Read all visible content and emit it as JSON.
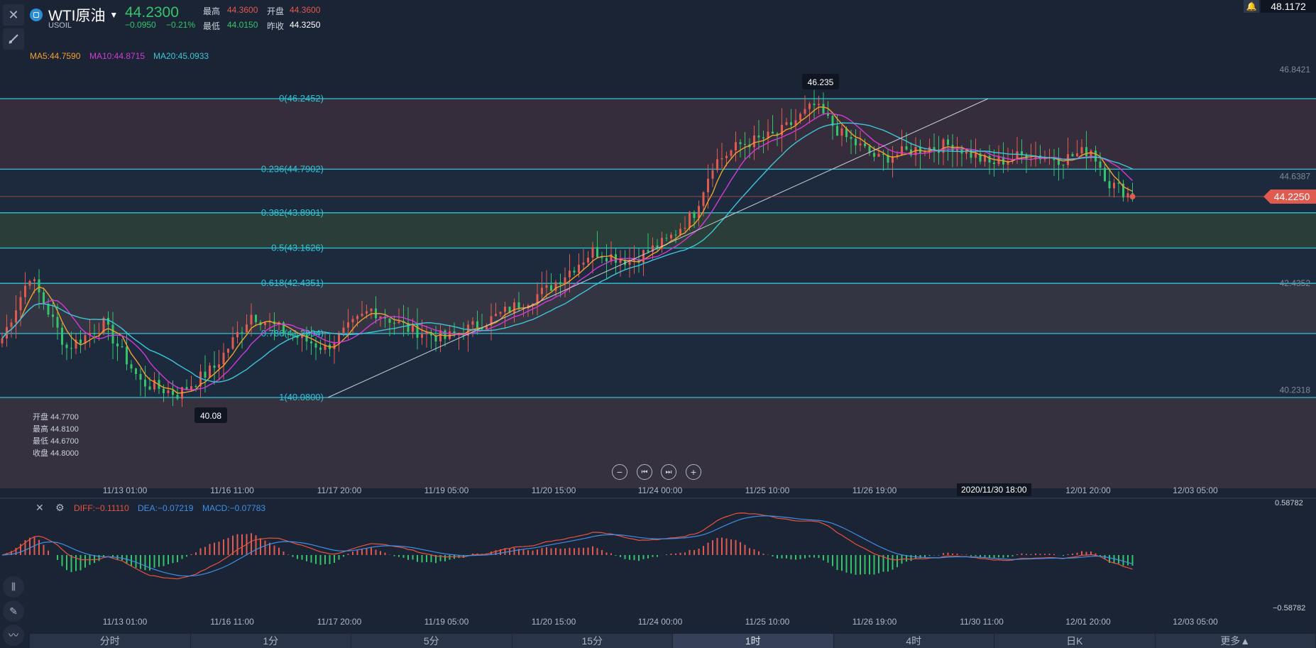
{
  "header": {
    "symbol": "WTI原油",
    "code": "USOIL",
    "price": "44.2300",
    "change": "−0.0950",
    "change_pct": "−0.21%",
    "high_label": "最高",
    "high": "44.3600",
    "open_label": "开盘",
    "open": "44.3600",
    "low_label": "最低",
    "low": "44.0150",
    "prev_label": "昨收",
    "prev": "44.3250",
    "top_right_value": "48.1172"
  },
  "ma": {
    "ma5": "MA5:44.7590",
    "ma10": "MA10:44.8715",
    "ma20": "MA20:45.0933"
  },
  "colors": {
    "bg": "#1b2434",
    "up": "#e05a4f",
    "down": "#32c56a",
    "ma5": "#f0a030",
    "ma10": "#d23ad8",
    "ma20": "#3cc6d8",
    "fib_line": "#2ec4d6",
    "diff": "#e8523f",
    "dea": "#3f8ee8"
  },
  "fib_levels": [
    {
      "label": "0(46.2452)",
      "value": 46.2452
    },
    {
      "label": "0.236(44.7902)",
      "value": 44.7902
    },
    {
      "label": "0.382(43.8901)",
      "value": 43.8901
    },
    {
      "label": "0.5(43.1626)",
      "value": 43.1626
    },
    {
      "label": "0.618(42.4351)",
      "value": 42.4351
    },
    {
      "label": "0.786(41.3994)",
      "value": 41.3994
    },
    {
      "label": "1(40.0800)",
      "value": 40.08
    }
  ],
  "price_axis": {
    "ticks": [
      "46.8421",
      "44.6387",
      "42.4352",
      "40.2318"
    ],
    "current": "44.2250",
    "high_marker": "46.235",
    "low_marker": "40.08"
  },
  "ohlc_info": {
    "open": "开盘 44.7700",
    "high": "最高 44.8100",
    "low": "最低 44.6700",
    "close": "收盘 44.8000"
  },
  "time_axis": [
    "11/13 01:00",
    "11/16 11:00",
    "11/17 20:00",
    "11/19 05:00",
    "11/20 15:00",
    "11/24 00:00",
    "11/25 10:00",
    "11/26 19:00",
    "11/30 11:00",
    "12/01 20:00",
    "12/03 05:00"
  ],
  "crosshair_time": "2020/11/30 18:00",
  "macd": {
    "diff": "DIFF:−0.11110",
    "dea": "DEA:−0.07219",
    "macd": "MACD:−0.07783",
    "axis_top": "0.58782",
    "axis_bottom": "−0.58782"
  },
  "controls": {
    "zoom_out": "−",
    "prev": "⏮",
    "next": "⏭",
    "zoom_in": "+"
  },
  "bottom_tabs": [
    {
      "label": "分时"
    },
    {
      "label": "1分"
    },
    {
      "label": "5分"
    },
    {
      "label": "15分"
    },
    {
      "label": "1时",
      "active": true
    },
    {
      "label": "4时"
    },
    {
      "label": "日K"
    },
    {
      "label": "更多▲"
    }
  ],
  "chart_data": {
    "type": "line",
    "ylim": [
      38.5,
      47.3
    ],
    "key_points": [
      {
        "i": 0,
        "price": 41.3
      },
      {
        "i": 6,
        "price": 42.6
      },
      {
        "i": 14,
        "price": 41.1
      },
      {
        "i": 22,
        "price": 41.6
      },
      {
        "i": 30,
        "price": 40.4
      },
      {
        "i": 38,
        "price": 40.15
      },
      {
        "i": 46,
        "price": 40.7
      },
      {
        "i": 54,
        "price": 41.8
      },
      {
        "i": 62,
        "price": 41.4
      },
      {
        "i": 70,
        "price": 41.1
      },
      {
        "i": 80,
        "price": 41.9
      },
      {
        "i": 88,
        "price": 41.5
      },
      {
        "i": 96,
        "price": 41.3
      },
      {
        "i": 106,
        "price": 41.7
      },
      {
        "i": 118,
        "price": 42.3
      },
      {
        "i": 128,
        "price": 43.1
      },
      {
        "i": 136,
        "price": 42.9
      },
      {
        "i": 144,
        "price": 43.3
      },
      {
        "i": 150,
        "price": 43.9
      },
      {
        "i": 154,
        "price": 44.9
      },
      {
        "i": 160,
        "price": 45.3
      },
      {
        "i": 168,
        "price": 45.5
      },
      {
        "i": 176,
        "price": 46.1
      },
      {
        "i": 182,
        "price": 45.5
      },
      {
        "i": 190,
        "price": 45.0
      },
      {
        "i": 198,
        "price": 45.2
      },
      {
        "i": 206,
        "price": 45.3
      },
      {
        "i": 214,
        "price": 44.9
      },
      {
        "i": 222,
        "price": 45.1
      },
      {
        "i": 230,
        "price": 45.0
      },
      {
        "i": 236,
        "price": 45.2
      },
      {
        "i": 240,
        "price": 44.5
      },
      {
        "i": 245,
        "price": 44.23
      }
    ]
  }
}
